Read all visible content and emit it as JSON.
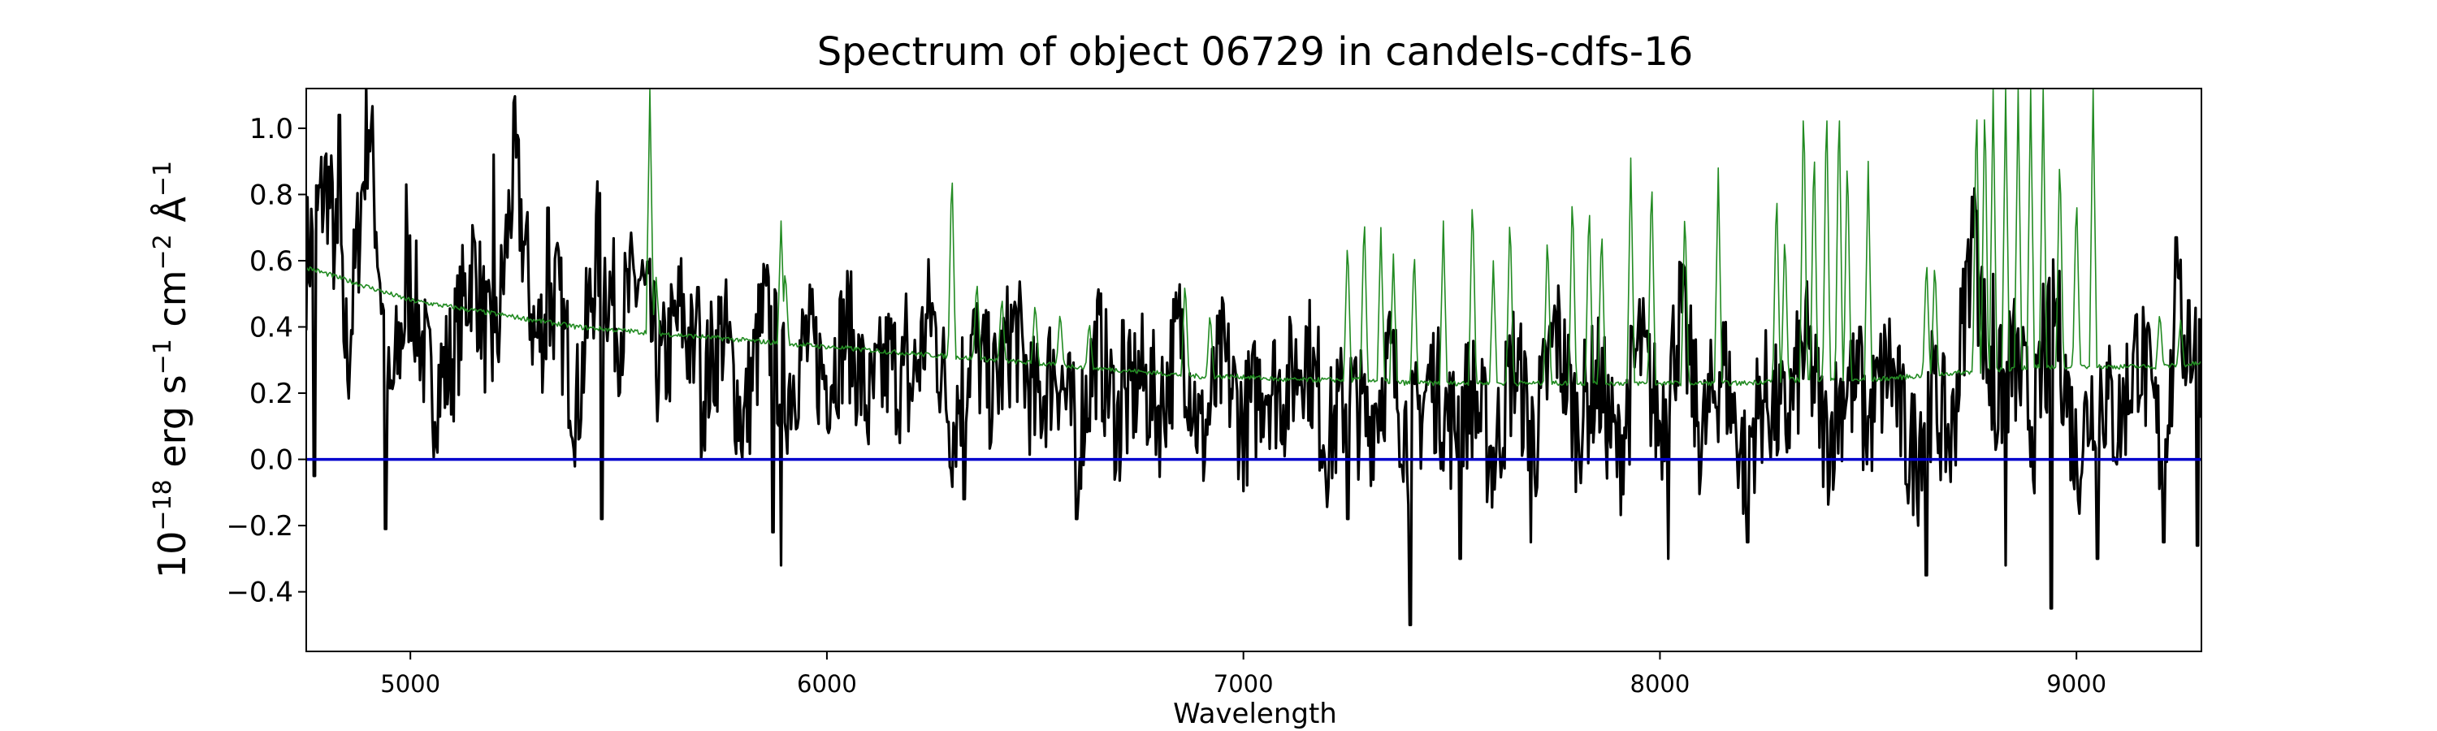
{
  "chart_data": {
    "type": "line",
    "title": "Spectrum of object 06729 in candels-cdfs-16",
    "xlabel": "Wavelength",
    "ylabel": {
      "base": "10",
      "exp": "−18",
      "unit1": " erg s",
      "exp1": "−1",
      "unit2": " cm",
      "exp2": "−2",
      "unit3": " Å",
      "exp3": "−1"
    },
    "xlim": [
      4750,
      9300
    ],
    "ylim": [
      -0.58,
      1.12
    ],
    "xticks": [
      5000,
      6000,
      7000,
      8000,
      9000
    ],
    "yticks": [
      1.0,
      0.8,
      0.6,
      0.4,
      0.2,
      0.0,
      -0.2,
      -0.4
    ],
    "ytick_labels": [
      "1.0",
      "0.8",
      "0.6",
      "0.4",
      "0.2",
      "0.0",
      "−0.2",
      "−0.4"
    ],
    "grid": false,
    "legend": "none",
    "series": [
      {
        "role": "flux",
        "color": "#000000",
        "x": [
          4750,
          4800,
          4850,
          4900,
          4950,
          5000,
          5050,
          5100,
          5150,
          5200,
          5250,
          5300,
          5350,
          5400,
          5450,
          5500,
          5550,
          5600,
          5650,
          5700,
          5750,
          5800,
          5850,
          5900,
          5950,
          6000,
          6050,
          6100,
          6150,
          6200,
          6250,
          6300,
          6350,
          6400,
          6450,
          6500,
          6550,
          6600,
          6650,
          6700,
          6750,
          6800,
          6850,
          6900,
          6950,
          7000,
          7050,
          7100,
          7150,
          7200,
          7250,
          7300,
          7350,
          7400,
          7450,
          7500,
          7550,
          7600,
          7650,
          7700,
          7750,
          7800,
          7850,
          7900,
          7950,
          8000,
          8050,
          8100,
          8150,
          8200,
          8250,
          8300,
          8350,
          8400,
          8450,
          8500,
          8550,
          8600,
          8650,
          8700,
          8750,
          8800,
          8850,
          8900,
          8950,
          9000,
          9050,
          9100,
          9150,
          9200,
          9250,
          9300
        ],
        "y": [
          0.6,
          0.85,
          0.3,
          1.05,
          0.15,
          0.55,
          0.2,
          0.3,
          0.6,
          0.25,
          0.9,
          0.35,
          0.5,
          0.15,
          0.65,
          0.4,
          0.55,
          0.25,
          0.45,
          0.2,
          0.4,
          0.1,
          0.45,
          0.2,
          0.35,
          0.25,
          0.4,
          0.15,
          0.3,
          0.2,
          0.45,
          0.1,
          0.35,
          0.2,
          0.4,
          0.15,
          0.3,
          0.05,
          0.35,
          0.1,
          0.25,
          0.15,
          0.4,
          0.05,
          0.3,
          0.1,
          0.25,
          0.2,
          0.35,
          0.05,
          0.2,
          0.1,
          0.3,
          0.05,
          0.25,
          0.1,
          0.2,
          0.0,
          0.3,
          0.05,
          0.4,
          0.1,
          0.25,
          0.0,
          0.35,
          0.1,
          0.45,
          0.05,
          0.3,
          0.0,
          0.2,
          0.1,
          0.35,
          0.05,
          0.25,
          0.1,
          0.3,
          0.0,
          0.2,
          0.05,
          0.7,
          0.15,
          0.3,
          0.1,
          0.45,
          0.0,
          0.25,
          0.1,
          0.35,
          0.05,
          0.4,
          0.3
        ],
        "dips_x": [
          4770,
          4940,
          5460,
          5870,
          5890,
          6330,
          6600,
          7250,
          7400,
          7520,
          7690,
          8020,
          8210,
          8480,
          8620,
          8640,
          8830,
          8920,
          8940,
          9050,
          9210,
          9290
        ],
        "dips_y": [
          -0.05,
          -0.21,
          -0.18,
          -0.22,
          -0.32,
          -0.12,
          -0.18,
          -0.18,
          -0.5,
          -0.3,
          -0.25,
          -0.3,
          -0.25,
          -0.22,
          -0.2,
          -0.35,
          -0.32,
          -0.52,
          -0.45,
          -0.3,
          -0.25,
          -0.26
        ],
        "peaks_x": [
          4830,
          4990,
          5200,
          5330,
          5690,
          6190,
          6710,
          7180,
          8480,
          8760,
          8800,
          8920,
          9240,
          9270
        ],
        "peaks_y": [
          1.04,
          0.83,
          0.92,
          0.76,
          0.52,
          0.5,
          0.42,
          0.4,
          0.4,
          0.75,
          0.56,
          0.53,
          0.67,
          0.48
        ]
      },
      {
        "role": "error",
        "color": "#228b22",
        "x": [
          4750,
          4900,
          5000,
          5100,
          5200,
          5300,
          5400,
          5500,
          5600,
          5700,
          5800,
          5900,
          6000,
          6100,
          6200,
          6300,
          6400,
          6500,
          6600,
          6700,
          6800,
          6900,
          7000,
          7100,
          7200,
          7300,
          7400,
          7500,
          7600,
          7700,
          7800,
          7900,
          8000,
          8100,
          8200,
          8300,
          8400,
          8500,
          8600,
          8700,
          8800,
          8900,
          9000,
          9100,
          9200,
          9300
        ],
        "y": [
          0.58,
          0.52,
          0.48,
          0.46,
          0.44,
          0.42,
          0.4,
          0.39,
          0.38,
          0.37,
          0.36,
          0.35,
          0.34,
          0.33,
          0.32,
          0.31,
          0.3,
          0.29,
          0.28,
          0.27,
          0.26,
          0.25,
          0.25,
          0.24,
          0.24,
          0.24,
          0.23,
          0.23,
          0.23,
          0.23,
          0.23,
          0.23,
          0.23,
          0.23,
          0.23,
          0.24,
          0.24,
          0.24,
          0.25,
          0.26,
          0.27,
          0.28,
          0.28,
          0.28,
          0.28,
          0.29
        ],
        "spikes_x": [
          5575,
          5590,
          5890,
          5900,
          6300,
          6360,
          6420,
          6500,
          6560,
          6630,
          6860,
          6920,
          7250,
          7290,
          7330,
          7360,
          7410,
          7480,
          7550,
          7600,
          7640,
          7730,
          7790,
          7830,
          7860,
          7930,
          7980,
          8060,
          8140,
          8280,
          8300,
          8345,
          8370,
          8400,
          8430,
          8450,
          8500,
          8640,
          8660,
          8760,
          8780,
          8800,
          8830,
          8860,
          8890,
          8920,
          8960,
          9000,
          9040,
          9200,
          9250
        ],
        "spikes_y": [
          1.12,
          0.55,
          0.72,
          0.58,
          0.9,
          0.55,
          0.5,
          0.48,
          0.45,
          0.42,
          0.55,
          0.45,
          0.68,
          0.76,
          0.7,
          0.62,
          0.65,
          0.72,
          0.82,
          0.6,
          0.76,
          0.7,
          0.83,
          0.8,
          0.72,
          0.91,
          0.88,
          0.78,
          0.88,
          0.84,
          0.7,
          1.12,
          0.98,
          1.12,
          1.12,
          0.95,
          0.9,
          0.62,
          0.61,
          1.12,
          1.12,
          1.12,
          1.12,
          1.12,
          1.12,
          1.12,
          0.95,
          0.82,
          1.12,
          0.45,
          0.42
        ]
      },
      {
        "role": "zero",
        "color": "#0000cd",
        "x": [
          4750,
          9300
        ],
        "y": [
          0.0,
          0.0
        ]
      }
    ]
  }
}
